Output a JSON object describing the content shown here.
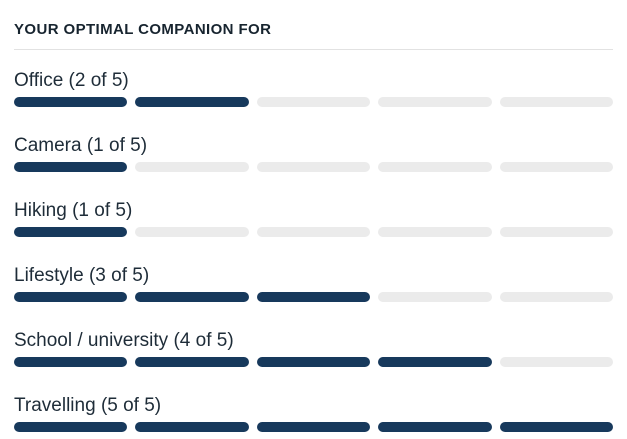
{
  "header": {
    "title": "YOUR OPTIMAL COMPANION FOR"
  },
  "rows": [
    {
      "label": "Office (2 of 5)",
      "category": "Office",
      "value": 2,
      "max": 5
    },
    {
      "label": "Camera (1 of 5)",
      "category": "Camera",
      "value": 1,
      "max": 5
    },
    {
      "label": "Hiking (1 of 5)",
      "category": "Hiking",
      "value": 1,
      "max": 5
    },
    {
      "label": "Lifestyle (3 of 5)",
      "category": "Lifestyle",
      "value": 3,
      "max": 5
    },
    {
      "label": "School / university (4 of 5)",
      "category": "School / university",
      "value": 4,
      "max": 5
    },
    {
      "label": "Travelling (5 of 5)",
      "category": "Travelling",
      "value": 5,
      "max": 5
    }
  ],
  "colors": {
    "bar_filled": "#17395c",
    "bar_empty": "#ebebeb",
    "divider": "#e2e2e2",
    "heading_text": "#17242f",
    "label_text": "#1e2c38"
  },
  "chart_data": {
    "type": "bar",
    "orientation": "horizontal",
    "title": "YOUR OPTIMAL COMPANION FOR",
    "categories": [
      "Office",
      "Camera",
      "Hiking",
      "Lifestyle",
      "School / university",
      "Travelling"
    ],
    "values": [
      2,
      1,
      1,
      3,
      4,
      5
    ],
    "value_min": 0,
    "value_max": 5,
    "segments_per_bar": 5,
    "grid": false,
    "legend": false
  }
}
